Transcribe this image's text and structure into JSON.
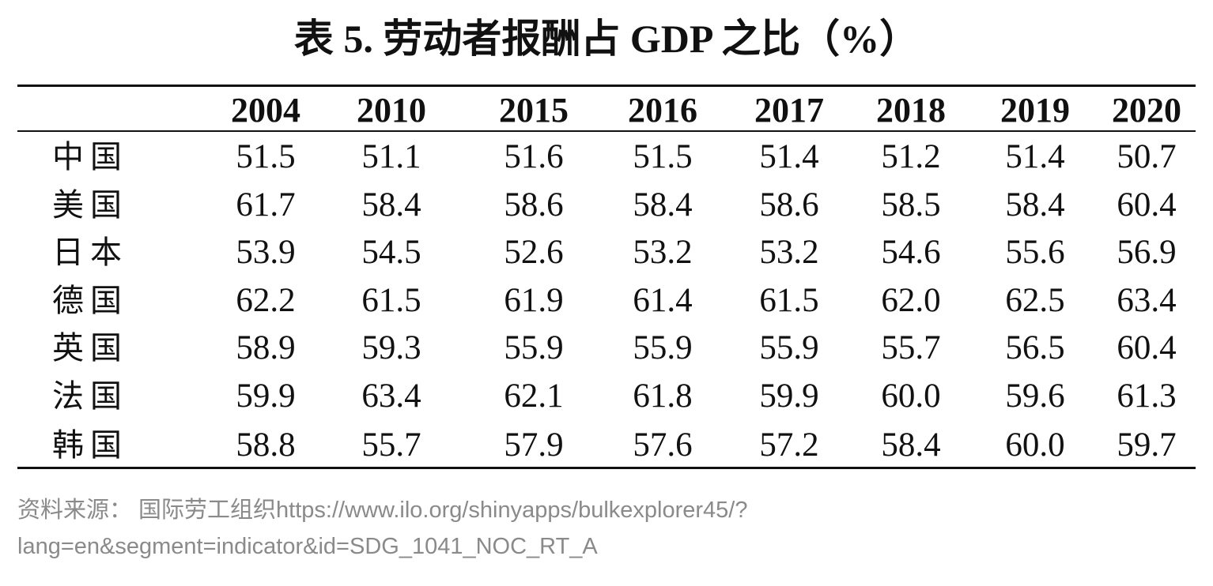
{
  "title": "表 5. 劳动者报酬占 GDP 之比（%）",
  "table": {
    "years": [
      "2004",
      "2010",
      "2015",
      "2016",
      "2017",
      "2018",
      "2019",
      "2020"
    ],
    "rows": [
      {
        "country": "中国",
        "values": [
          "51.5",
          "51.1",
          "51.6",
          "51.5",
          "51.4",
          "51.2",
          "51.4",
          "50.7"
        ]
      },
      {
        "country": "美国",
        "values": [
          "61.7",
          "58.4",
          "58.6",
          "58.4",
          "58.6",
          "58.5",
          "58.4",
          "60.4"
        ]
      },
      {
        "country": "日本",
        "values": [
          "53.9",
          "54.5",
          "52.6",
          "53.2",
          "53.2",
          "54.6",
          "55.6",
          "56.9"
        ]
      },
      {
        "country": "德国",
        "values": [
          "62.2",
          "61.5",
          "61.9",
          "61.4",
          "61.5",
          "62.0",
          "62.5",
          "63.4"
        ]
      },
      {
        "country": "英国",
        "values": [
          "58.9",
          "59.3",
          "55.9",
          "55.9",
          "55.9",
          "55.7",
          "56.5",
          "60.4"
        ]
      },
      {
        "country": "法国",
        "values": [
          "59.9",
          "63.4",
          "62.1",
          "61.8",
          "59.9",
          "60.0",
          "59.6",
          "61.3"
        ]
      },
      {
        "country": "韩国",
        "values": [
          "58.8",
          "55.7",
          "57.9",
          "57.6",
          "57.2",
          "58.4",
          "60.0",
          "59.7"
        ]
      }
    ]
  },
  "source": {
    "line1": "资料来源：  国际劳工组织https://www.ilo.org/shinyapps/bulkexplorer45/?",
    "line2": "lang=en&segment=indicator&id=SDG_1041_NOC_RT_A"
  }
}
